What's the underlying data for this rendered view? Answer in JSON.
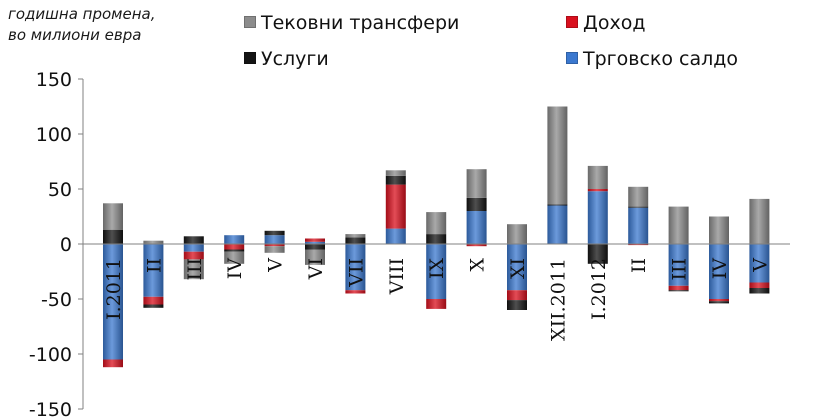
{
  "chart_data": {
    "type": "bar",
    "stacked": true,
    "unit_label_lines": [
      "годишна промена,",
      "во милиони евра"
    ],
    "categories": [
      "I.2011",
      "II",
      "III",
      "IV",
      "V",
      "VI",
      "VII",
      "VIII",
      "IX",
      "X",
      "XI",
      "XII.2011",
      "I.2012",
      "II",
      "III",
      "IV",
      "V"
    ],
    "ylim": [
      -150,
      150
    ],
    "yticks": [
      150,
      100,
      50,
      0,
      -50,
      -100,
      -150
    ],
    "legend_placement": "top",
    "grid": false,
    "series": [
      {
        "name": "Трговско салдо",
        "color": "#3b78cf",
        "values": [
          -105,
          -48,
          -7,
          8,
          8,
          2,
          -42,
          14,
          -50,
          30,
          -42,
          35,
          48,
          33,
          -38,
          -50,
          -35
        ]
      },
      {
        "name": "Доход",
        "color": "#d9101e",
        "values": [
          -7,
          -7,
          -7,
          -5,
          -2,
          3,
          -3,
          40,
          -9,
          -2,
          -9,
          0,
          2,
          -1,
          -4,
          -2,
          -5
        ]
      },
      {
        "name": "Услуги",
        "color": "#141414",
        "values": [
          13,
          -3,
          7,
          -2,
          4,
          -5,
          6,
          8,
          9,
          12,
          -9,
          1,
          -18,
          1,
          -1,
          -2,
          -5
        ]
      },
      {
        "name": "Тековни трансфери",
        "color": "#8c8c8c",
        "values": [
          24,
          3,
          -18,
          -11,
          -6,
          -14,
          3,
          5,
          20,
          26,
          18,
          89,
          21,
          18,
          34,
          25,
          41
        ]
      }
    ]
  },
  "legend": [
    {
      "label": "Тековни трансфери",
      "color": "#8c8c8c"
    },
    {
      "label": "Доход",
      "color": "#d9101e"
    },
    {
      "label": "Услуги",
      "color": "#141414"
    },
    {
      "label": "Трговско салдо",
      "color": "#3b78cf"
    }
  ]
}
